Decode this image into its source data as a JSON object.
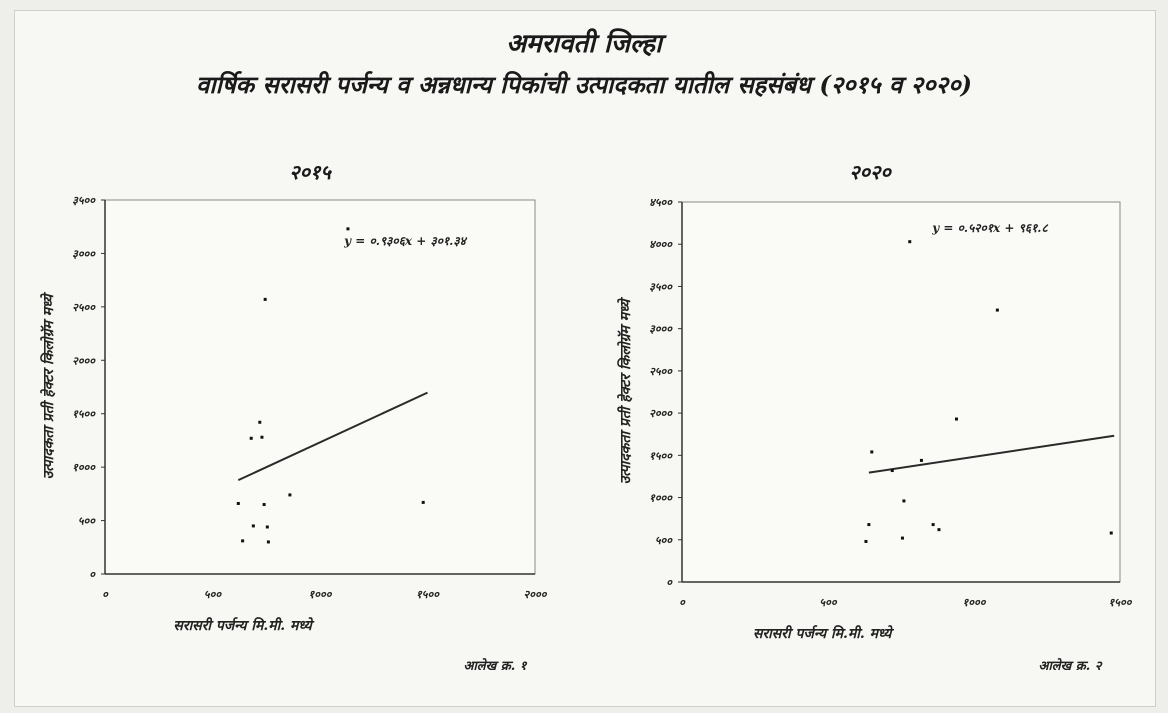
{
  "title_main": "अमरावती जिल्हा",
  "title_sub": "वार्षिक सरासरी पर्जन्य व अन्नधान्य पिकांची उत्पादकता यातील सहसंबंध (२०१५ व २०२०)",
  "chart_data": [
    {
      "type": "scatter",
      "title": "२०१५",
      "xlabel": "सरासरी पर्जन्य मि.मी. मध्ये",
      "ylabel": "उत्पादकता प्रती हेक्टर किलोग्रॅम मध्ये",
      "xlim": [
        0,
        2000
      ],
      "ylim": [
        0,
        3500
      ],
      "xticks": [
        "०",
        "५००",
        "१०००",
        "१५००",
        "२०००"
      ],
      "yticks": [
        "०",
        "५००",
        "१०००",
        "१५००",
        "२०००",
        "२५००",
        "३०००",
        "३५००"
      ],
      "equation": "y = ०.९३०६x + ३०१.३४",
      "trend": {
        "slope": 0.9306,
        "intercept": 301.34,
        "x": [
          620,
          1500
        ]
      },
      "caption": "आलेख क्र. १",
      "points": [
        {
          "x": 620,
          "y": 660
        },
        {
          "x": 640,
          "y": 310
        },
        {
          "x": 680,
          "y": 1270
        },
        {
          "x": 690,
          "y": 450
        },
        {
          "x": 720,
          "y": 1420
        },
        {
          "x": 730,
          "y": 1280
        },
        {
          "x": 740,
          "y": 650
        },
        {
          "x": 745,
          "y": 2570
        },
        {
          "x": 755,
          "y": 440
        },
        {
          "x": 760,
          "y": 300
        },
        {
          "x": 860,
          "y": 740
        },
        {
          "x": 1130,
          "y": 3230
        },
        {
          "x": 1480,
          "y": 670
        }
      ]
    },
    {
      "type": "scatter",
      "title": "२०२०",
      "xlabel": "सरासरी पर्जन्य मि.मी. मध्ये",
      "ylabel": "उत्पादकता प्रती हेक्टर किलोग्रॅम मध्ये",
      "xlim": [
        0,
        1500
      ],
      "ylim": [
        0,
        4500
      ],
      "xticks": [
        "०",
        "५००",
        "१०००",
        "१५००"
      ],
      "yticks": [
        "०",
        "५००",
        "१०००",
        "१५००",
        "२०००",
        "२५००",
        "३०००",
        "३५००",
        "४०००",
        "४५००"
      ],
      "equation": "y = ०.५२०१x + ९६१.८",
      "trend": {
        "slope": 0.5201,
        "intercept": 961.8,
        "x": [
          640,
          1480
        ]
      },
      "caption": "आलेख क्र. २",
      "points": [
        {
          "x": 630,
          "y": 480
        },
        {
          "x": 640,
          "y": 680
        },
        {
          "x": 650,
          "y": 1540
        },
        {
          "x": 720,
          "y": 1320
        },
        {
          "x": 755,
          "y": 520
        },
        {
          "x": 760,
          "y": 960
        },
        {
          "x": 780,
          "y": 4030
        },
        {
          "x": 820,
          "y": 1440
        },
        {
          "x": 860,
          "y": 680
        },
        {
          "x": 880,
          "y": 620
        },
        {
          "x": 940,
          "y": 1930
        },
        {
          "x": 1080,
          "y": 3220
        },
        {
          "x": 1470,
          "y": 580
        }
      ]
    }
  ]
}
